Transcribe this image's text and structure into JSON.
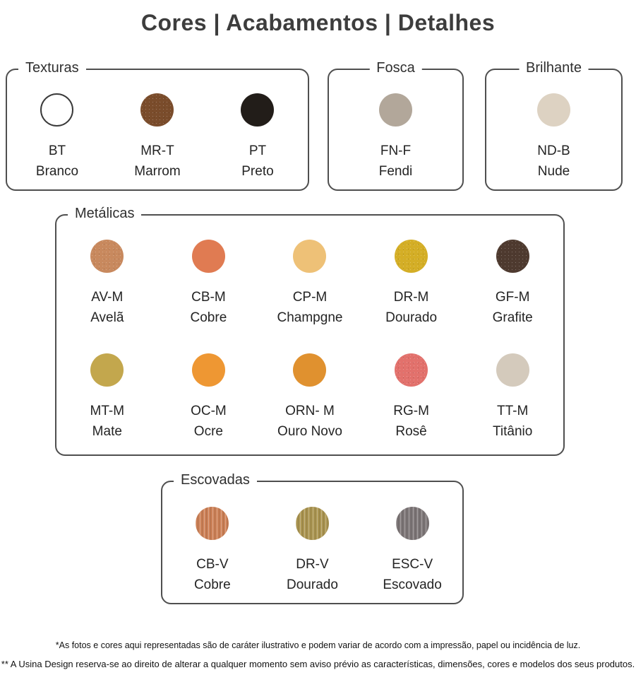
{
  "title": "Cores | Acabamentos | Detalhes",
  "groups": {
    "texturas": {
      "label": "Texturas",
      "items": [
        {
          "code": "BT",
          "name": "Branco",
          "color": "#ffffff"
        },
        {
          "code": "MR-T",
          "name": "Marrom",
          "color": "#7a4c2b"
        },
        {
          "code": "PT",
          "name": "Preto",
          "color": "#221d19"
        }
      ]
    },
    "fosca": {
      "label": "Fosca",
      "items": [
        {
          "code": "FN-F",
          "name": "Fendi",
          "color": "#b2a79a"
        }
      ]
    },
    "brilhante": {
      "label": "Brilhante",
      "items": [
        {
          "code": "ND-B",
          "name": "Nude",
          "color": "#ddd2c2"
        }
      ]
    },
    "metalicas": {
      "label": "Metálicas",
      "items": [
        {
          "code": "AV-M",
          "name": "Avelã",
          "color": "#c8895e"
        },
        {
          "code": "CB-M",
          "name": "Cobre",
          "color": "#e07b52"
        },
        {
          "code": "CP-M",
          "name": "Champgne",
          "color": "#eec177"
        },
        {
          "code": "DR-M",
          "name": "Dourado",
          "color": "#d4ae26"
        },
        {
          "code": "GF-M",
          "name": "Grafite",
          "color": "#4e3a2f"
        },
        {
          "code": "MT-M",
          "name": "Mate",
          "color": "#c3a74d"
        },
        {
          "code": "OC-M",
          "name": "Ocre",
          "color": "#ee9733"
        },
        {
          "code": "ORN- M",
          "name": "Ouro Novo",
          "color": "#e0912f"
        },
        {
          "code": "RG-M",
          "name": "Rosê",
          "color": "#e2716c"
        },
        {
          "code": "TT-M",
          "name": "Titânio",
          "color": "#d4cabc"
        }
      ]
    },
    "escovadas": {
      "label": "Escovadas",
      "items": [
        {
          "code": "CB-V",
          "name": "Cobre",
          "color": "#cd8157"
        },
        {
          "code": "DR-V",
          "name": "Dourado",
          "color": "#ab9551"
        },
        {
          "code": "ESC-V",
          "name": "Escovado",
          "color": "#7e7778"
        }
      ]
    }
  },
  "footer": {
    "note1": "*As fotos e cores aqui representadas são de caráter ilustrativo e podem variar de acordo com a impressão, papel ou incidência de luz.",
    "note2": "** A Usina Design reserva-se ao direito de alterar a qualquer momento sem aviso prévio as características, dimensões, cores e modelos dos seus produtos."
  }
}
